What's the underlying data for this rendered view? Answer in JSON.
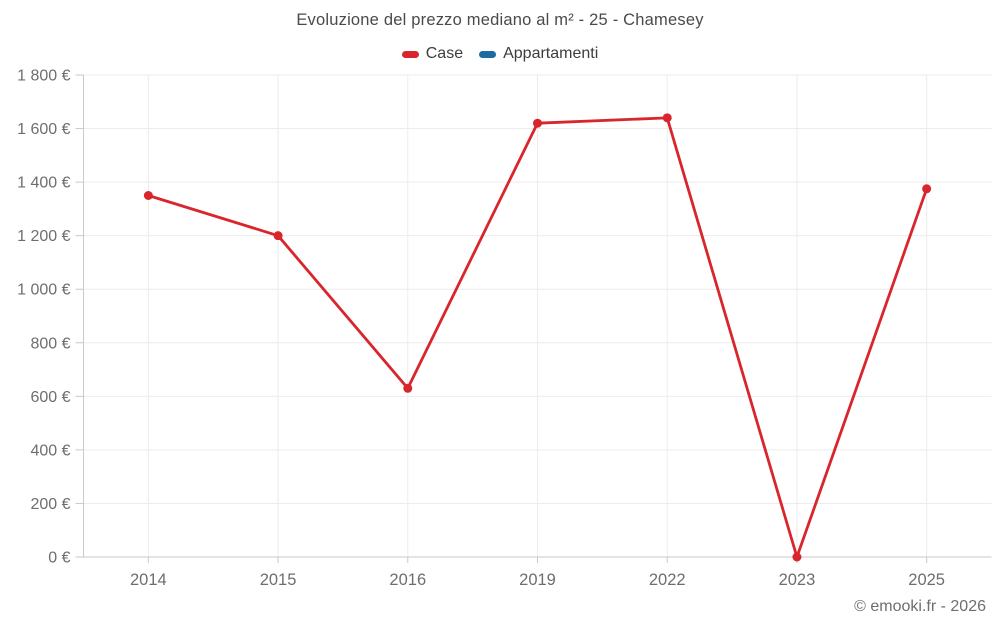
{
  "title": "Evoluzione del prezzo mediano al m² - 25 - Chamesey",
  "footer": "© emooki.fr - 2026",
  "legend": [
    {
      "label": "Case",
      "color": "#d8262c"
    },
    {
      "label": "Appartamenti",
      "color": "#1a6d9e"
    }
  ],
  "colors": {
    "background": "#ffffff",
    "grid": "#ececec",
    "axis": "#c9c9c9",
    "tick_text": "#6e6e6e",
    "title_text": "#4a4a4a",
    "series_case": "#d8262c",
    "series_appartamenti": "#1a6d9e"
  },
  "chart_data": {
    "type": "line",
    "categories": [
      "2014",
      "2015",
      "2016",
      "2019",
      "2022",
      "2023",
      "2025"
    ],
    "series": [
      {
        "name": "Case",
        "color": "#d8262c",
        "values": [
          1350,
          1200,
          630,
          1620,
          1640,
          0,
          1375
        ]
      },
      {
        "name": "Appartamenti",
        "color": "#1a6d9e",
        "values": []
      }
    ],
    "title": "Evoluzione del prezzo mediano al m² - 25 - Chamesey",
    "xlabel": "",
    "ylabel": "",
    "ylim": [
      0,
      1800
    ],
    "ytick_step": 200,
    "yticks": [
      {
        "value": 0,
        "label": "0 €"
      },
      {
        "value": 200,
        "label": "200 €"
      },
      {
        "value": 400,
        "label": "400 €"
      },
      {
        "value": 600,
        "label": "600 €"
      },
      {
        "value": 800,
        "label": "800 €"
      },
      {
        "value": 1000,
        "label": "1 000 €"
      },
      {
        "value": 1200,
        "label": "1 200 €"
      },
      {
        "value": 1400,
        "label": "1 400 €"
      },
      {
        "value": 1600,
        "label": "1 600 €"
      },
      {
        "value": 1800,
        "label": "1 800 €"
      }
    ],
    "grid": true,
    "legend_position": "top",
    "marker_radius": 4.5,
    "line_width": 2.8
  }
}
